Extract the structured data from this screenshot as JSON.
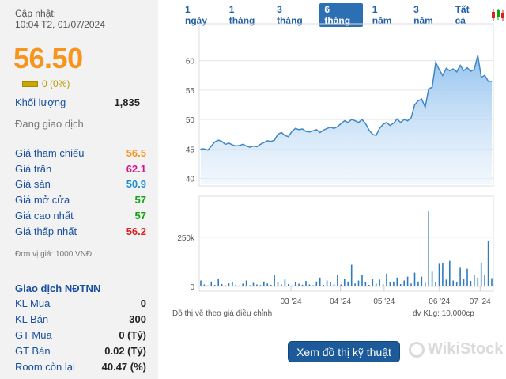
{
  "header": {
    "updated_label": "Cập nhật:",
    "updated_time": "10:04 T2, 01/07/2024",
    "price": "56.50",
    "change": "0 (0%)"
  },
  "stats": {
    "volume_label": "Khối lượng",
    "volume_value": "1,835",
    "status": "Đang giao dịch",
    "ref_label": "Giá tham chiếu",
    "ref_value": "56.5",
    "ceil_label": "Giá trần",
    "ceil_value": "62.1",
    "floor_label": "Giá sàn",
    "floor_value": "50.9",
    "open_label": "Giá mở cửa",
    "open_value": "57",
    "high_label": "Giá cao nhất",
    "high_value": "57",
    "low_label": "Giá thấp nhất",
    "low_value": "56.2",
    "unit": "Đơn vị giá: 1000 VNĐ"
  },
  "foreign": {
    "title": "Giao dịch NĐTNN",
    "rows": [
      {
        "label": "KL Mua",
        "value": "0"
      },
      {
        "label": "KL Bán",
        "value": "300"
      },
      {
        "label": "GT Mua",
        "value": "0 (Tỷ)"
      },
      {
        "label": "GT Bán",
        "value": "0.02 (Tỷ)"
      },
      {
        "label": "Room còn lại",
        "value": "40.47 (%)"
      }
    ]
  },
  "tabs": [
    "1 ngày",
    "1 tháng",
    "3 tháng",
    "6 tháng",
    "1 năm",
    "3 năm",
    "Tất cả"
  ],
  "active_tab": "6 tháng",
  "footer": {
    "note": "Đồ thị vẽ theo giá điều chỉnh",
    "vol_unit": "đv KLg: 10,000cp",
    "cta": "Xem đồ thị kỹ thuật",
    "watermark": "WikiStock"
  },
  "colors": {
    "price": "#f7941d",
    "ceiling": "#d4148f",
    "floor": "#1b8fcf",
    "up": "#11a311",
    "down": "#d9221c",
    "line": "#3f86c8",
    "bar": "#2e7bbf"
  },
  "chart_data": {
    "type": "area",
    "price_axis": {
      "ylim": [
        39,
        66
      ],
      "ticks": [
        40,
        45,
        50,
        55,
        60
      ]
    },
    "volume_axis": {
      "ylim": [
        0,
        450000
      ],
      "ticks": [
        "0",
        "250k"
      ]
    },
    "x_ticks": [
      "03 '24",
      "04 '24",
      "05 '24",
      "06 '24",
      "07 '24"
    ],
    "price": [
      45,
      45,
      44.8,
      45.5,
      46.2,
      46.5,
      46.3,
      45.8,
      46,
      45.7,
      45.5,
      45.6,
      45.8,
      45.5,
      45.3,
      45.5,
      45.4,
      45.8,
      46.1,
      46.4,
      46.3,
      46.5,
      47.5,
      47.8,
      47.3,
      47.1,
      48,
      48.5,
      48.3,
      48.4,
      48,
      47.9,
      48.1,
      48.3,
      47.8,
      48.2,
      48.5,
      48.7,
      48.5,
      48.8,
      49.3,
      49.8,
      49.5,
      50,
      49.8,
      49.5,
      50,
      49.3,
      48.2,
      47.5,
      47.3,
      48.5,
      49.2,
      49.5,
      49,
      49.4,
      50.1,
      49.5,
      50,
      49.8,
      50.3,
      52.5,
      53.2,
      53.5,
      52.1,
      55.2,
      55.5,
      59.7,
      58.5,
      57.5,
      58.7,
      58.3,
      58.6,
      58.1,
      59.2,
      58.3,
      58.8,
      58.2,
      58.5,
      60.9,
      57.2,
      57.5,
      56.5,
      56.5
    ],
    "volume": [
      30000,
      10000,
      5000,
      25000,
      8000,
      40000,
      12000,
      6000,
      15000,
      20000,
      9000,
      5000,
      14000,
      30000,
      6000,
      18000,
      10000,
      7000,
      25000,
      15000,
      8000,
      60000,
      20000,
      10000,
      35000,
      12000,
      5000,
      22000,
      14000,
      9000,
      28000,
      10000,
      6000,
      25000,
      45000,
      8000,
      30000,
      20000,
      12000,
      60000,
      10000,
      40000,
      25000,
      110000,
      15000,
      30000,
      60000,
      20000,
      8000,
      40000,
      15000,
      35000,
      10000,
      65000,
      20000,
      25000,
      45000,
      12000,
      30000,
      50000,
      15000,
      70000,
      25000,
      50000,
      18000,
      380000,
      75000,
      25000,
      115000,
      120000,
      35000,
      130000,
      30000,
      22000,
      95000,
      38000,
      90000,
      28000,
      60000,
      45000,
      120000,
      60000,
      230000,
      42000
    ]
  }
}
